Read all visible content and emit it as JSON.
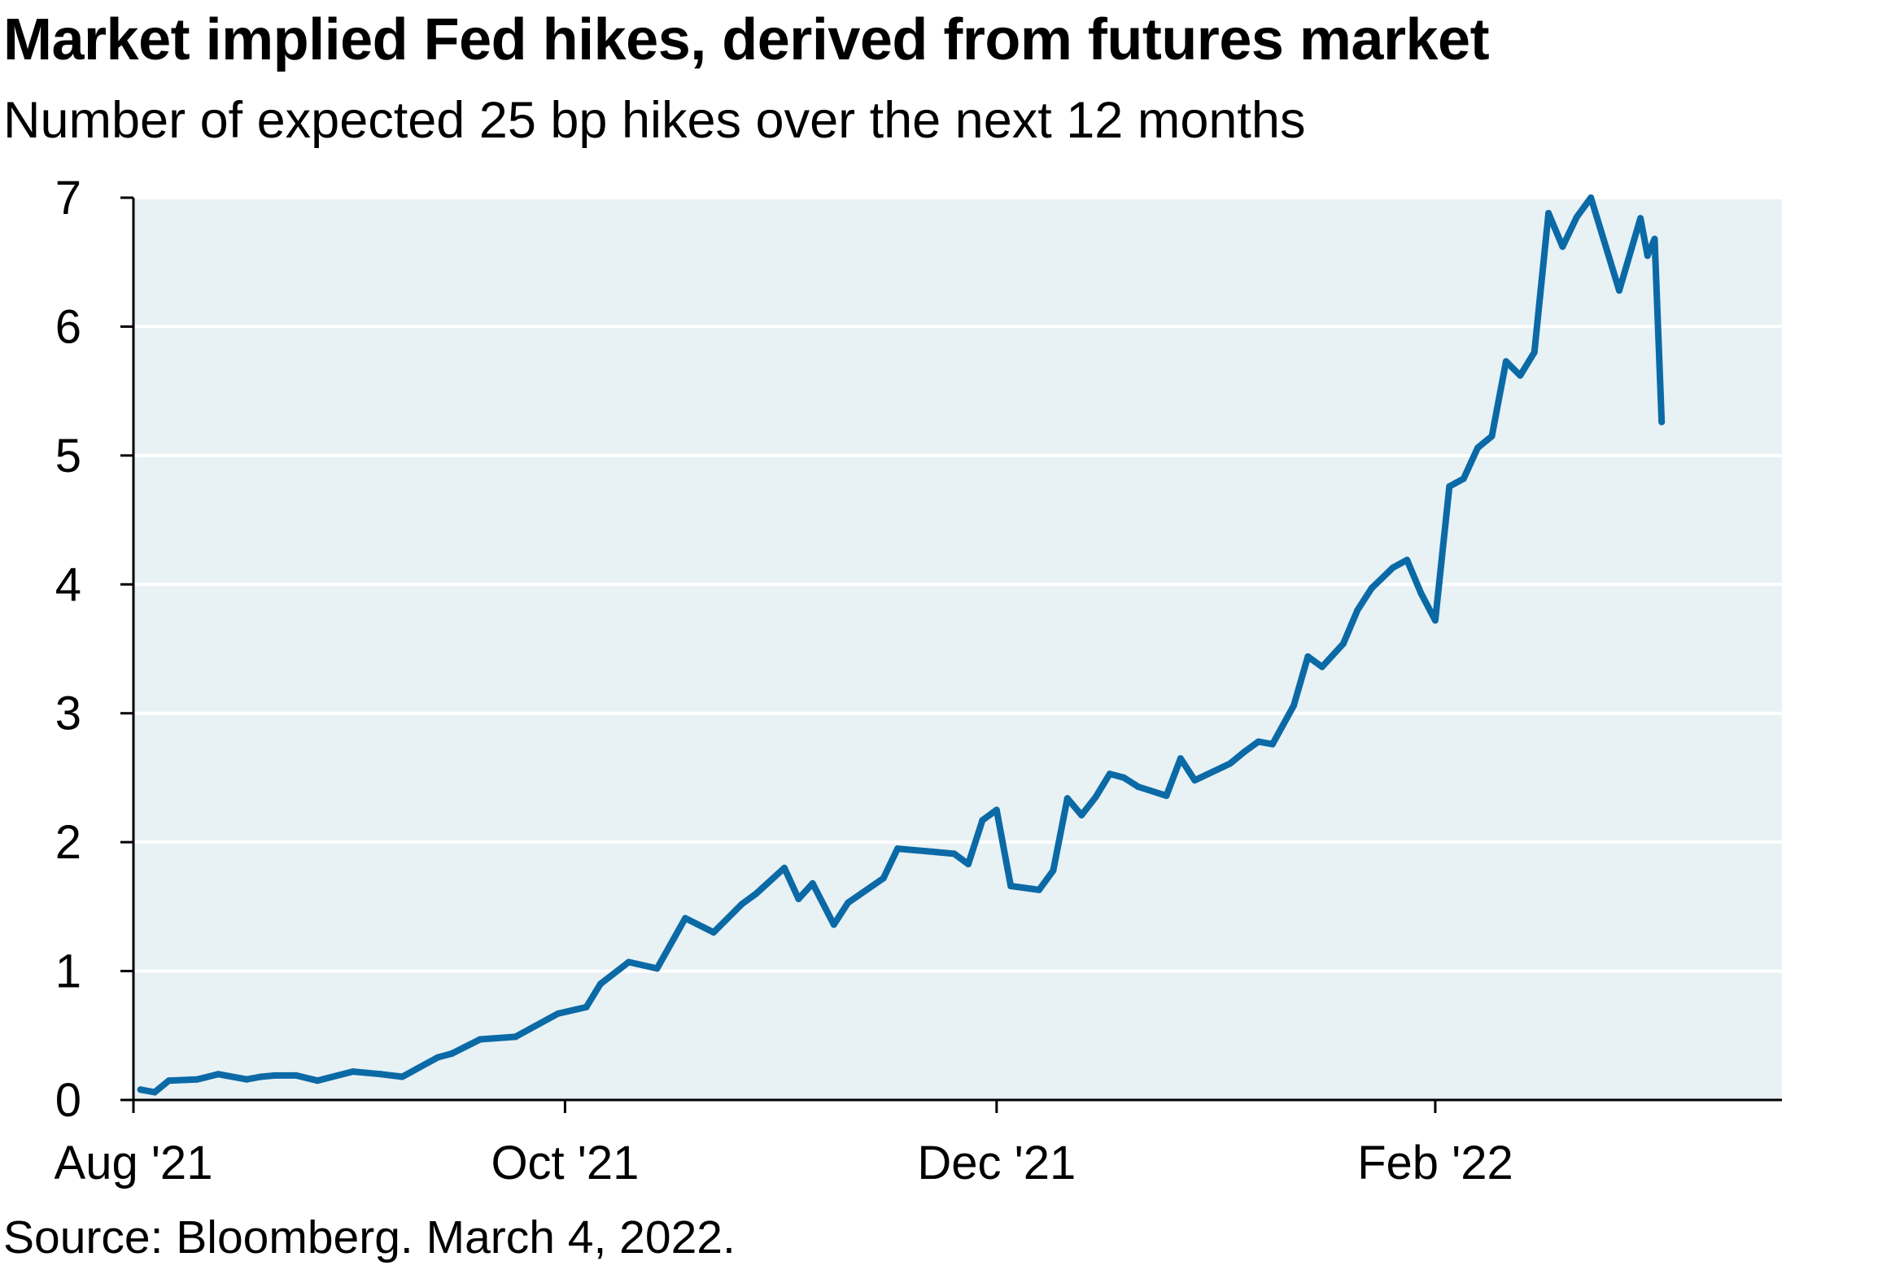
{
  "chart_data": {
    "type": "line",
    "title": "Market implied Fed hikes, derived from futures market",
    "subtitle": "Number of expected 25 bp hikes over the next 12 months",
    "source": "Source: Bloomberg. March 4, 2022.",
    "xlabel": "",
    "ylabel": "",
    "ylim": [
      0,
      7
    ],
    "xlim": [
      "2021-08-01",
      "2022-03-22"
    ],
    "y_ticks": [
      "0",
      "1",
      "2",
      "3",
      "4",
      "5",
      "6",
      "7"
    ],
    "x_ticks": [
      {
        "label": "Aug '21",
        "date": "2021-08-01"
      },
      {
        "label": "Oct '21",
        "date": "2021-10-01"
      },
      {
        "label": "Dec '21",
        "date": "2021-12-01"
      },
      {
        "label": "Feb '22",
        "date": "2022-02-01"
      }
    ],
    "grid": "horizontal",
    "plot_background": "#e8f1f4",
    "series": [
      {
        "color": "#0b6aa6",
        "x": [
          "2021-08-02",
          "2021-08-04",
          "2021-08-06",
          "2021-08-10",
          "2021-08-13",
          "2021-08-17",
          "2021-08-19",
          "2021-08-21",
          "2021-08-24",
          "2021-08-27",
          "2021-09-01",
          "2021-09-03",
          "2021-09-05",
          "2021-09-08",
          "2021-09-13",
          "2021-09-15",
          "2021-09-19",
          "2021-09-24",
          "2021-09-26",
          "2021-09-30",
          "2021-10-04",
          "2021-10-06",
          "2021-10-10",
          "2021-10-14",
          "2021-10-18",
          "2021-10-22",
          "2021-10-26",
          "2021-10-28",
          "2021-11-01",
          "2021-11-03",
          "2021-11-05",
          "2021-11-08",
          "2021-11-10",
          "2021-11-15",
          "2021-11-17",
          "2021-11-21",
          "2021-11-25",
          "2021-11-27",
          "2021-11-29",
          "2021-12-01",
          "2021-12-03",
          "2021-12-07",
          "2021-12-09",
          "2021-12-11",
          "2021-12-13",
          "2021-12-15",
          "2021-12-17",
          "2021-12-19",
          "2021-12-21",
          "2021-12-25",
          "2021-12-27",
          "2021-12-29",
          "2022-01-03",
          "2022-01-05",
          "2022-01-07",
          "2022-01-09",
          "2022-01-12",
          "2022-01-14",
          "2022-01-16",
          "2022-01-19",
          "2022-01-21",
          "2022-01-23",
          "2022-01-26",
          "2022-01-28",
          "2022-01-30",
          "2022-02-01",
          "2022-02-03",
          "2022-02-05",
          "2022-02-07",
          "2022-02-09",
          "2022-02-11",
          "2022-02-13",
          "2022-02-15",
          "2022-02-17",
          "2022-02-19",
          "2022-02-21",
          "2022-02-23",
          "2022-02-27",
          "2022-03-02",
          "2022-03-03",
          "2022-03-04",
          "2022-03-05"
        ],
        "values": [
          0.08,
          0.06,
          0.15,
          0.16,
          0.2,
          0.16,
          0.18,
          0.19,
          0.19,
          0.15,
          0.22,
          0.21,
          0.2,
          0.18,
          0.33,
          0.36,
          0.47,
          0.49,
          0.55,
          0.67,
          0.72,
          0.9,
          1.07,
          1.02,
          1.41,
          1.3,
          1.52,
          1.6,
          1.8,
          1.56,
          1.68,
          1.36,
          1.53,
          1.72,
          1.95,
          1.93,
          1.91,
          1.83,
          2.17,
          2.25,
          1.66,
          1.63,
          1.78,
          2.34,
          2.21,
          2.35,
          2.53,
          2.5,
          2.43,
          2.36,
          2.65,
          2.48,
          2.61,
          2.7,
          2.78,
          2.76,
          3.06,
          3.44,
          3.36,
          3.54,
          3.8,
          3.97,
          4.13,
          4.19,
          3.93,
          3.72,
          4.76,
          4.82,
          5.06,
          5.15,
          5.73,
          5.62,
          5.8,
          6.88,
          6.62,
          6.85,
          7.0,
          6.28,
          6.84,
          6.55,
          6.68,
          5.26
        ]
      }
    ]
  }
}
